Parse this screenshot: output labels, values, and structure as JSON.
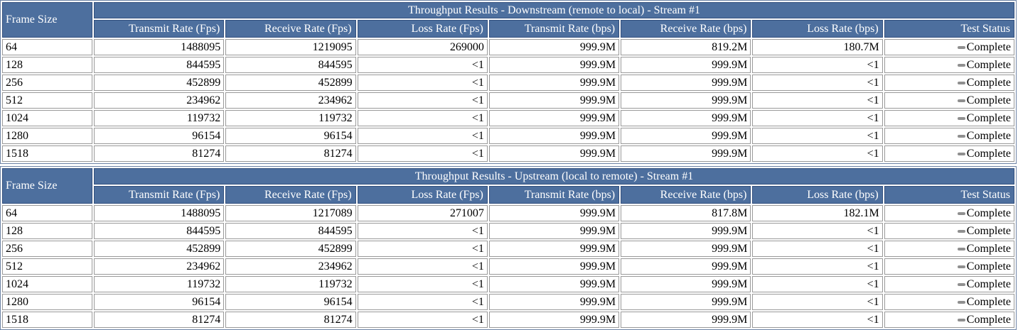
{
  "colors": {
    "header_bg": "#4d6f9e",
    "header_border": "#33507e",
    "cell_border": "#999999",
    "status_dash_gray": "#8f8f8f"
  },
  "tables": [
    {
      "name": "downstream",
      "frame_size_header": "Frame Size",
      "title": "Throughput Results - Downstream (remote to local) - Stream #1",
      "columns": [
        "Transmit Rate (Fps)",
        "Receive Rate (Fps)",
        "Loss Rate (Fps)",
        "Transmit Rate (bps)",
        "Receive Rate (bps)",
        "Loss Rate (bps)",
        "Test Status"
      ],
      "rows": [
        [
          "64",
          "1488095",
          "1219095",
          "269000",
          "999.9M",
          "819.2M",
          "180.7M",
          "Complete"
        ],
        [
          "128",
          "844595",
          "844595",
          "<1",
          "999.9M",
          "999.9M",
          "<1",
          "Complete"
        ],
        [
          "256",
          "452899",
          "452899",
          "<1",
          "999.9M",
          "999.9M",
          "<1",
          "Complete"
        ],
        [
          "512",
          "234962",
          "234962",
          "<1",
          "999.9M",
          "999.9M",
          "<1",
          "Complete"
        ],
        [
          "1024",
          "119732",
          "119732",
          "<1",
          "999.9M",
          "999.9M",
          "<1",
          "Complete"
        ],
        [
          "1280",
          "96154",
          "96154",
          "<1",
          "999.9M",
          "999.9M",
          "<1",
          "Complete"
        ],
        [
          "1518",
          "81274",
          "81274",
          "<1",
          "999.9M",
          "999.9M",
          "<1",
          "Complete"
        ]
      ]
    },
    {
      "name": "upstream",
      "frame_size_header": "Frame Size",
      "title": "Throughput Results - Upstream (local to remote) - Stream #1",
      "columns": [
        "Transmit Rate (Fps)",
        "Receive Rate (Fps)",
        "Loss Rate (Fps)",
        "Transmit Rate (bps)",
        "Receive Rate (bps)",
        "Loss Rate (bps)",
        "Test Status"
      ],
      "rows": [
        [
          "64",
          "1488095",
          "1217089",
          "271007",
          "999.9M",
          "817.8M",
          "182.1M",
          "Complete"
        ],
        [
          "128",
          "844595",
          "844595",
          "<1",
          "999.9M",
          "999.9M",
          "<1",
          "Complete"
        ],
        [
          "256",
          "452899",
          "452899",
          "<1",
          "999.9M",
          "999.9M",
          "<1",
          "Complete"
        ],
        [
          "512",
          "234962",
          "234962",
          "<1",
          "999.9M",
          "999.9M",
          "<1",
          "Complete"
        ],
        [
          "1024",
          "119732",
          "119732",
          "<1",
          "999.9M",
          "999.9M",
          "<1",
          "Complete"
        ],
        [
          "1280",
          "96154",
          "96154",
          "<1",
          "999.9M",
          "999.9M",
          "<1",
          "Complete"
        ],
        [
          "1518",
          "81274",
          "81274",
          "<1",
          "999.9M",
          "999.9M",
          "<1",
          "Complete"
        ]
      ]
    }
  ]
}
